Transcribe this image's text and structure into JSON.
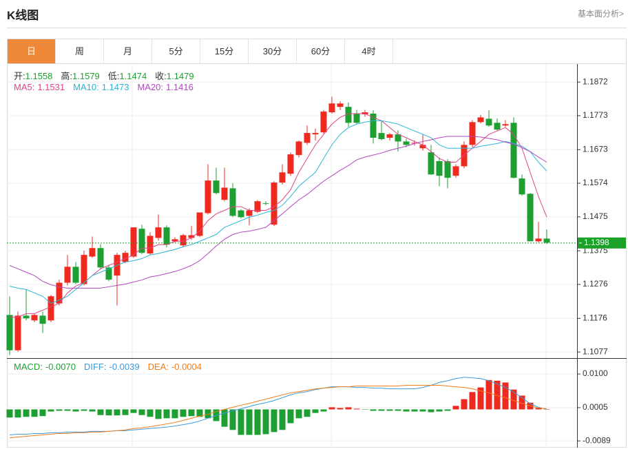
{
  "header": {
    "title": "K线图",
    "link": "基本面分析>"
  },
  "tabs": [
    "日",
    "周",
    "月",
    "5分",
    "15分",
    "30分",
    "60分",
    "4时"
  ],
  "active_tab": 0,
  "chart_data": [
    {
      "type": "candlestick",
      "readouts": [
        {
          "label": "开:",
          "value": "1.1558"
        },
        {
          "label": "高:",
          "value": "1.1579"
        },
        {
          "label": "低:",
          "value": "1.1474"
        },
        {
          "label": "收:",
          "value": "1.1479"
        }
      ],
      "up_color": "#ee2a1f",
      "down_color": "#1d9f31",
      "open": [
        1.1186,
        1.1082,
        1.1184,
        1.117,
        1.1184,
        1.117,
        1.122,
        1.1281,
        1.1328,
        1.1277,
        1.1358,
        1.1383,
        1.1326,
        1.1302,
        1.1342,
        1.1358,
        1.144,
        1.1367,
        1.1413,
        1.1444,
        1.1403,
        1.1391,
        1.1413,
        1.1419,
        1.1486,
        1.1582,
        1.1525,
        1.1559,
        1.1494,
        1.1478,
        1.149,
        1.1515,
        1.1452,
        1.1576,
        1.1602,
        1.1657,
        1.1693,
        1.1718,
        1.1724,
        1.1783,
        1.1799,
        1.1799,
        1.1779,
        1.1777,
        1.1779,
        1.1722,
        1.1708,
        1.1718,
        1.1697,
        1.1693,
        1.1677,
        1.1665,
        1.1639,
        1.1639,
        1.1596,
        1.1624,
        1.1687,
        1.1754,
        1.1764,
        1.1752,
        1.1744,
        1.1752,
        1.1588,
        1.1543,
        1.1403,
        1.1411
      ],
      "high": [
        1.1241,
        1.1196,
        1.1261,
        1.119,
        1.1196,
        1.1245,
        1.129,
        1.1363,
        1.1342,
        1.1375,
        1.1417,
        1.1395,
        1.1334,
        1.1369,
        1.1375,
        1.1444,
        1.1452,
        1.143,
        1.1482,
        1.145,
        1.1415,
        1.1425,
        1.1448,
        1.1488,
        1.163,
        1.162,
        1.162,
        1.1574,
        1.1498,
        1.15,
        1.1525,
        1.1521,
        1.158,
        1.163,
        1.1665,
        1.17,
        1.1744,
        1.1735,
        1.179,
        1.1829,
        1.1815,
        1.1812,
        1.179,
        1.179,
        1.1789,
        1.1756,
        1.1722,
        1.173,
        1.1705,
        1.17,
        1.1718,
        1.1687,
        1.165,
        1.1645,
        1.163,
        1.1697,
        1.176,
        1.1775,
        1.1789,
        1.1765,
        1.176,
        1.1768,
        1.16,
        1.1545,
        1.146,
        1.1438
      ],
      "low": [
        1.1068,
        1.1078,
        1.117,
        1.1165,
        1.1133,
        1.1165,
        1.1214,
        1.1273,
        1.1277,
        1.1273,
        1.1354,
        1.132,
        1.1285,
        1.1214,
        1.1338,
        1.1354,
        1.1365,
        1.1363,
        1.1405,
        1.1385,
        1.1399,
        1.1385,
        1.1407,
        1.1415,
        1.1482,
        1.1541,
        1.1521,
        1.1474,
        1.147,
        1.145,
        1.1486,
        1.1509,
        1.1448,
        1.157,
        1.1596,
        1.165,
        1.1687,
        1.17,
        1.172,
        1.1779,
        1.179,
        1.174,
        1.1748,
        1.177,
        1.1691,
        1.17,
        1.17,
        1.1667,
        1.168,
        1.1685,
        1.167,
        1.1598,
        1.1565,
        1.1559,
        1.159,
        1.1618,
        1.168,
        1.175,
        1.174,
        1.1728,
        1.174,
        1.1588,
        1.1537,
        1.1403,
        1.14,
        1.1395
      ],
      "close": [
        1.1082,
        1.1184,
        1.1176,
        1.1186,
        1.116,
        1.1241,
        1.1281,
        1.1328,
        1.1281,
        1.1363,
        1.1383,
        1.1326,
        1.129,
        1.1363,
        1.1369,
        1.1444,
        1.1369,
        1.1419,
        1.1444,
        1.1393,
        1.1409,
        1.1421,
        1.1421,
        1.1488,
        1.1582,
        1.1545,
        1.1561,
        1.1478,
        1.1474,
        1.1494,
        1.1521,
        1.1513,
        1.1576,
        1.1606,
        1.1659,
        1.1697,
        1.1722,
        1.1722,
        1.1785,
        1.1809,
        1.1809,
        1.1752,
        1.1752,
        1.1783,
        1.1708,
        1.1704,
        1.1718,
        1.1697,
        1.1687,
        1.1693,
        1.1687,
        1.16,
        1.1596,
        1.159,
        1.1624,
        1.1687,
        1.1754,
        1.1768,
        1.1744,
        1.1732,
        1.1748,
        1.159,
        1.1541,
        1.1403,
        1.1411,
        1.1399
      ],
      "series": [
        {
          "name": "MA5:",
          "readout": "1.1531",
          "color": "#e0448a",
          "values": [
            1.118,
            1.118,
            1.119,
            1.119,
            1.12,
            1.121,
            1.122,
            1.1251,
            1.1271,
            1.1281,
            1.1302,
            1.1322,
            1.1332,
            1.1342,
            1.1352,
            1.1363,
            1.1383,
            1.1383,
            1.1393,
            1.1393,
            1.1403,
            1.1403,
            1.1413,
            1.1433,
            1.1464,
            1.1484,
            1.1494,
            1.1505,
            1.1505,
            1.1494,
            1.1494,
            1.1494,
            1.1505,
            1.1525,
            1.1555,
            1.1606,
            1.1647,
            1.1687,
            1.1718,
            1.1748,
            1.1768,
            1.1779,
            1.1779,
            1.1779,
            1.1768,
            1.1758,
            1.1738,
            1.1718,
            1.1708,
            1.1697,
            1.1687,
            1.1667,
            1.1647,
            1.1636,
            1.1636,
            1.1657,
            1.1677,
            1.1697,
            1.1718,
            1.1728,
            1.1738,
            1.1718,
            1.1677,
            1.1606,
            1.1535,
            1.1474
          ]
        },
        {
          "name": "MA10:",
          "readout": "1.1473",
          "color": "#2ab5d6",
          "values": [
            1.1271,
            1.1265,
            1.1261,
            1.1251,
            1.1241,
            1.122,
            1.123,
            1.1241,
            1.1261,
            1.1281,
            1.1302,
            1.1312,
            1.1322,
            1.1332,
            1.1342,
            1.1346,
            1.1352,
            1.1363,
            1.1367,
            1.1373,
            1.1379,
            1.1387,
            1.1393,
            1.1403,
            1.1413,
            1.1423,
            1.1444,
            1.1454,
            1.1464,
            1.1474,
            1.148,
            1.1488,
            1.1494,
            1.1509,
            1.1535,
            1.1565,
            1.1586,
            1.1606,
            1.1647,
            1.1687,
            1.1718,
            1.1738,
            1.1748,
            1.1754,
            1.1758,
            1.1758,
            1.1754,
            1.1748,
            1.1738,
            1.1728,
            1.1718,
            1.1708,
            1.1687,
            1.1677,
            1.1677,
            1.1677,
            1.1677,
            1.1683,
            1.1687,
            1.1691,
            1.1697,
            1.1691,
            1.1683,
            1.1667,
            1.1636,
            1.161
          ]
        },
        {
          "name": "MA20:",
          "readout": "1.1416",
          "color": "#b245c0",
          "values": [
            1.1332,
            1.1322,
            1.1312,
            1.1302,
            1.1285,
            1.1275,
            1.1269,
            1.1265,
            1.1265,
            1.1265,
            1.1265,
            1.1265,
            1.1269,
            1.1273,
            1.1277,
            1.1283,
            1.1289,
            1.1298,
            1.1302,
            1.1308,
            1.1314,
            1.1322,
            1.1332,
            1.1346,
            1.1367,
            1.1389,
            1.1409,
            1.1423,
            1.143,
            1.1433,
            1.1438,
            1.1444,
            1.1464,
            1.1484,
            1.1505,
            1.1525,
            1.1541,
            1.1561,
            1.158,
            1.1596,
            1.1612,
            1.1626,
            1.1643,
            1.1651,
            1.1657,
            1.1663,
            1.1671,
            1.1677,
            1.1683,
            1.1691,
            1.1697,
            1.1702,
            1.1708,
            1.1712,
            1.1712,
            1.1712,
            1.1712,
            1.171,
            1.1706,
            1.1702,
            1.1695,
            1.1689,
            1.1679,
            1.1667,
            1.1651,
            1.1636
          ]
        }
      ],
      "ylim": [
        1.1063,
        1.1921
      ],
      "yticks": [
        1.1872,
        1.1773,
        1.1673,
        1.1574,
        1.1475,
        1.1375,
        1.1276,
        1.1176,
        1.1077
      ],
      "last_price": 1.1398,
      "last_color": "#1aa128",
      "grid": true
    },
    {
      "type": "macd",
      "up_color": "#ee2a1f",
      "down_color": "#1d9f31",
      "histogram": {
        "name": "MACD:",
        "readout": "-0.0070",
        "color": "#1d9f31",
        "values": [
          -0.0023,
          -0.0023,
          -0.0021,
          -0.0021,
          -0.0019,
          -0.0006,
          -0.0004,
          -0.0004,
          -0.0006,
          -0.0004,
          -0.0006,
          -0.0016,
          -0.0017,
          -0.0017,
          -0.0016,
          -0.001,
          -0.0016,
          -0.0021,
          -0.0027,
          -0.0025,
          -0.0025,
          -0.0021,
          -0.0019,
          -0.0021,
          -0.0025,
          -0.0033,
          -0.0049,
          -0.0058,
          -0.0072,
          -0.0072,
          -0.0072,
          -0.007,
          -0.0064,
          -0.0058,
          -0.0039,
          -0.0025,
          -0.0021,
          -0.001,
          -0.0006,
          0.0006,
          0.0004,
          0.0006,
          0.0002,
          -0.0001,
          -0.0004,
          -0.0004,
          -0.0004,
          -0.0004,
          -0.0006,
          -0.0006,
          -0.0006,
          -0.0008,
          -0.0006,
          -0.0004,
          0.001,
          0.0029,
          0.0049,
          0.0062,
          0.0083,
          0.0081,
          0.0076,
          0.0056,
          0.0039,
          0.0019,
          0.0004,
          0.0001
        ]
      },
      "series": [
        {
          "name": "DIFF:",
          "readout": "-0.0039",
          "color": "#3b99d9",
          "values": [
            -0.0072,
            -0.007,
            -0.007,
            -0.0068,
            -0.0068,
            -0.0066,
            -0.0066,
            -0.0064,
            -0.0064,
            -0.0064,
            -0.0062,
            -0.0062,
            -0.0062,
            -0.006,
            -0.006,
            -0.0058,
            -0.0056,
            -0.0054,
            -0.0052,
            -0.005,
            -0.0047,
            -0.0043,
            -0.0039,
            -0.0033,
            -0.0025,
            -0.0017,
            -0.001,
            -0.0004,
            0.0002,
            0.0008,
            0.0014,
            0.0019,
            0.0025,
            0.0033,
            0.0041,
            0.0047,
            0.005,
            0.0056,
            0.006,
            0.0064,
            0.0064,
            0.0064,
            0.0062,
            0.0062,
            0.006,
            0.006,
            0.0058,
            0.0058,
            0.0058,
            0.0058,
            0.0062,
            0.0068,
            0.0076,
            0.0081,
            0.0087,
            0.0091,
            0.0089,
            0.0087,
            0.0081,
            0.0072,
            0.0062,
            0.0049,
            0.0033,
            0.0016,
            0.0006,
            0
          ]
        },
        {
          "name": "DEA:",
          "readout": "-0.0004",
          "color": "#f07c1a",
          "values": [
            -0.008,
            -0.0078,
            -0.0076,
            -0.0074,
            -0.0072,
            -0.007,
            -0.0068,
            -0.0068,
            -0.0066,
            -0.0066,
            -0.0064,
            -0.0064,
            -0.0062,
            -0.006,
            -0.0058,
            -0.0054,
            -0.0052,
            -0.0049,
            -0.0045,
            -0.0041,
            -0.0037,
            -0.0031,
            -0.0025,
            -0.0019,
            -0.0014,
            -0.0006,
            0,
            0.0006,
            0.0012,
            0.0017,
            0.0023,
            0.0029,
            0.0035,
            0.0041,
            0.0047,
            0.005,
            0.0054,
            0.0058,
            0.006,
            0.0062,
            0.0064,
            0.0064,
            0.0066,
            0.0066,
            0.0066,
            0.0066,
            0.0066,
            0.0066,
            0.0068,
            0.0068,
            0.0068,
            0.0068,
            0.0068,
            0.0066,
            0.0064,
            0.0062,
            0.0058,
            0.0052,
            0.0047,
            0.0039,
            0.0033,
            0.0025,
            0.0017,
            0.001,
            0.0004,
            0.0002
          ]
        }
      ],
      "ylim": [
        -0.0108,
        0.0141
      ],
      "yticks": [
        {
          "value": 0.01,
          "label": "0.0100"
        },
        0.0005,
        -0.0089
      ],
      "grid": true
    }
  ]
}
